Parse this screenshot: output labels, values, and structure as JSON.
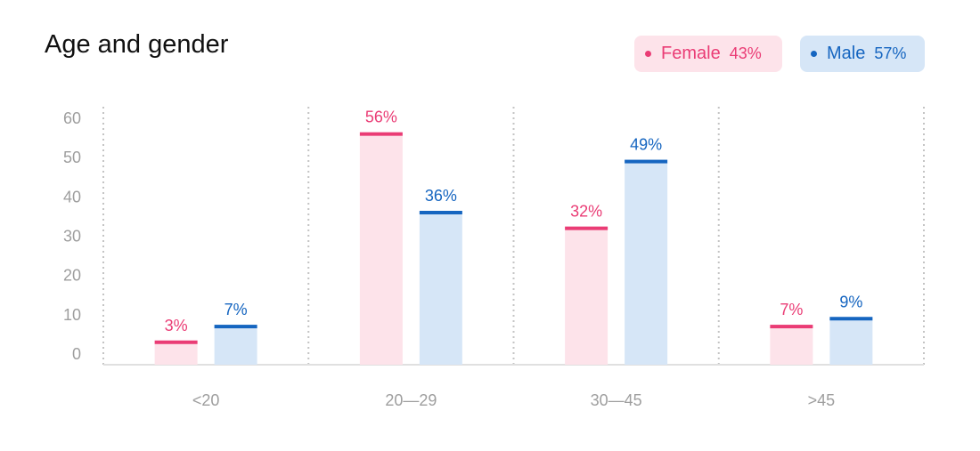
{
  "chart_data": {
    "type": "bar",
    "title": "Age and gender",
    "categories": [
      "<20",
      "20—29",
      "30—45",
      ">45"
    ],
    "series": [
      {
        "name": "Female",
        "values": [
          3,
          56,
          32,
          7
        ],
        "labels": [
          "3%",
          "56%",
          "32%",
          "7%"
        ],
        "color": "#ea3c75",
        "fill": "#fde3ea"
      },
      {
        "name": "Male",
        "values": [
          7,
          36,
          49,
          9
        ],
        "labels": [
          "7%",
          "36%",
          "49%",
          "9%"
        ],
        "color": "#1565c0",
        "fill": "#d6e6f7"
      }
    ],
    "yticks": [
      "0",
      "10",
      "20",
      "30",
      "40",
      "50",
      "60"
    ],
    "ylim": [
      0,
      60
    ],
    "xlabel": "",
    "ylabel": "",
    "grid": "vertical dotted separators",
    "legend_position": "top-right"
  },
  "legend": {
    "female_label": "Female",
    "female_pct": "43%",
    "male_label": "Male",
    "male_pct": "57%"
  },
  "colors": {
    "female": "#ea3c75",
    "female_fill": "#fde3ea",
    "male": "#1565c0",
    "male_fill": "#d6e6f7",
    "axis_text": "#9e9e9e",
    "grid": "#c4c4c4"
  }
}
